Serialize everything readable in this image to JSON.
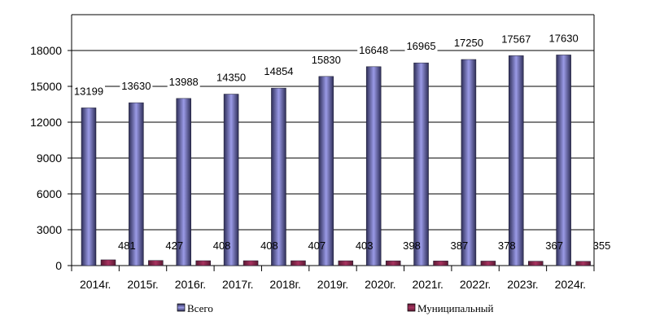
{
  "chart_data": {
    "type": "bar",
    "categories": [
      "2014г.",
      "2015г.",
      "2016г.",
      "2017г.",
      "2018г.",
      "2019г.",
      "2020г.",
      "2021г.",
      "2022г.",
      "2023г.",
      "2024г."
    ],
    "series": [
      {
        "name": "Всего",
        "values": [
          13199,
          13630,
          13988,
          14350,
          14854,
          15830,
          16648,
          16965,
          17250,
          17567,
          17630
        ],
        "color": "#9a9ae6",
        "color_dark": "#2e2e57"
      },
      {
        "name": "Муниципальный",
        "values": [
          481,
          427,
          408,
          408,
          407,
          403,
          398,
          387,
          378,
          367,
          355
        ],
        "color": "#a8325f",
        "color_dark": "#5a1a33"
      }
    ],
    "ylim": [
      0,
      21000
    ],
    "yticks": [
      0,
      3000,
      6000,
      9000,
      12000,
      15000,
      18000
    ],
    "grid": true,
    "legend_position": "bottom",
    "title": "",
    "xlabel": "",
    "ylabel": ""
  }
}
